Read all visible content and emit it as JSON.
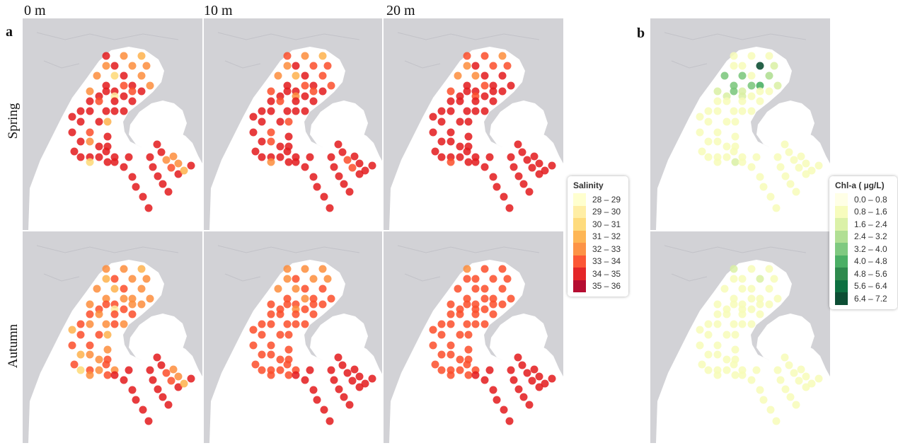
{
  "header": {
    "depths": [
      "0 m",
      "10 m",
      "20 m"
    ],
    "panel_a": "a",
    "panel_b": "b",
    "seasons": [
      "Spring",
      "Autumn"
    ]
  },
  "colors": {
    "land": "#d2d2d6",
    "sea": "#ffffff",
    "coastline": "#c2c2c8",
    "salinity": [
      "#ffffcc",
      "#ffeda0",
      "#fed976",
      "#feb24c",
      "#fd8d3c",
      "#fc4e2a",
      "#e31a1c",
      "#b10026"
    ],
    "chla": [
      "#ffffe5",
      "#f7fcb9",
      "#d9f0a3",
      "#addd8e",
      "#78c679",
      "#41ab5d",
      "#238443",
      "#006837",
      "#004529"
    ]
  },
  "legends": {
    "salinity": {
      "title": "Salinity",
      "items": [
        "28 – 29",
        "29 – 30",
        "30 – 31",
        "31 – 32",
        "32 – 33",
        "33 – 34",
        "34 – 35",
        "35 – 36"
      ]
    },
    "chla": {
      "title": "Chl-a ( µg/L)",
      "items": [
        "0.0 – 0.8",
        "0.8 – 1.6",
        "1.6 – 2.4",
        "2.4 – 3.2",
        "3.2 – 4.0",
        "4.0 – 4.8",
        "4.8 – 5.6",
        "5.6 – 6.4",
        "6.4 – 7.2"
      ]
    }
  },
  "chart_data": {
    "type": "map-points",
    "description_units": "station class index into legend",
    "maps": [
      {
        "panel": "a",
        "season": "Spring",
        "depth": "0 m",
        "variable": "Salinity",
        "classes": [
          6,
          4,
          3,
          4,
          6,
          4,
          4,
          4,
          2,
          6,
          4,
          6,
          5,
          6,
          4,
          4,
          6,
          6,
          5,
          6,
          6,
          1,
          6,
          6,
          5,
          6,
          6,
          6,
          6,
          6,
          6,
          6,
          6,
          6,
          6,
          3,
          5,
          6,
          6,
          4,
          6,
          6,
          6,
          6,
          6,
          6,
          6,
          6,
          6,
          2,
          6,
          6,
          6,
          6,
          6,
          6,
          6,
          6,
          6,
          6,
          6,
          4,
          5,
          6,
          6,
          6,
          6,
          6,
          4,
          4,
          3,
          6
        ]
      },
      {
        "panel": "a",
        "season": "Spring",
        "depth": "10 m",
        "variable": "Salinity",
        "classes": [
          5,
          4,
          3,
          4,
          6,
          5,
          5,
          4,
          3,
          6,
          5,
          6,
          5,
          6,
          5,
          5,
          6,
          6,
          5,
          6,
          6,
          4,
          6,
          6,
          5,
          6,
          6,
          6,
          6,
          6,
          6,
          6,
          6,
          6,
          6,
          5,
          5,
          6,
          6,
          5,
          6,
          6,
          6,
          6,
          6,
          6,
          6,
          6,
          6,
          4,
          6,
          6,
          6,
          6,
          6,
          6,
          6,
          6,
          6,
          6,
          6,
          5,
          5,
          6,
          6,
          6,
          6,
          6,
          6,
          6,
          6,
          6
        ]
      },
      {
        "panel": "a",
        "season": "Spring",
        "depth": "20 m",
        "variable": "Salinity",
        "classes": [
          5,
          5,
          4,
          4,
          6,
          5,
          5,
          4,
          4,
          6,
          6,
          6,
          5,
          6,
          6,
          5,
          6,
          6,
          6,
          6,
          6,
          5,
          6,
          6,
          6,
          6,
          6,
          6,
          6,
          6,
          6,
          6,
          6,
          6,
          6,
          6,
          6,
          6,
          6,
          6,
          6,
          6,
          6,
          6,
          6,
          6,
          6,
          6,
          6,
          5,
          6,
          6,
          6,
          6,
          6,
          6,
          6,
          6,
          6,
          6,
          6,
          6,
          6,
          6,
          6,
          6,
          6,
          6,
          6,
          6,
          6,
          6
        ]
      },
      {
        "panel": "a",
        "season": "Autumn",
        "depth": "0 m",
        "variable": "Salinity",
        "classes": [
          4,
          4,
          3,
          3,
          5,
          4,
          4,
          4,
          3,
          5,
          4,
          4,
          4,
          4,
          4,
          4,
          5,
          5,
          4,
          4,
          5,
          1,
          5,
          5,
          4,
          5,
          5,
          5,
          4,
          4,
          5,
          4,
          3,
          5,
          5,
          3,
          5,
          5,
          4,
          4,
          3,
          4,
          5,
          5,
          2,
          5,
          4,
          4,
          5,
          4,
          5,
          6,
          6,
          6,
          6,
          6,
          6,
          6,
          6,
          6,
          6,
          5,
          5,
          6,
          6,
          6,
          6,
          6,
          4,
          4,
          3,
          6
        ]
      },
      {
        "panel": "a",
        "season": "Autumn",
        "depth": "10 m",
        "variable": "Salinity",
        "classes": [
          4,
          4,
          4,
          4,
          5,
          4,
          4,
          4,
          4,
          5,
          5,
          5,
          4,
          5,
          5,
          5,
          5,
          5,
          5,
          5,
          5,
          4,
          5,
          5,
          5,
          5,
          5,
          5,
          5,
          5,
          5,
          5,
          5,
          5,
          5,
          5,
          5,
          5,
          5,
          5,
          5,
          5,
          5,
          5,
          5,
          5,
          5,
          5,
          5,
          5,
          5,
          6,
          6,
          6,
          6,
          6,
          6,
          6,
          6,
          6,
          6,
          6,
          6,
          6,
          6,
          6,
          6,
          6,
          6,
          6,
          6,
          6
        ]
      },
      {
        "panel": "a",
        "season": "Autumn",
        "depth": "20 m",
        "variable": "Salinity",
        "classes": [
          4,
          5,
          5,
          5,
          5,
          5,
          5,
          5,
          5,
          5,
          5,
          5,
          5,
          5,
          5,
          5,
          5,
          5,
          5,
          5,
          5,
          5,
          5,
          5,
          5,
          5,
          5,
          5,
          5,
          5,
          5,
          5,
          5,
          5,
          5,
          5,
          5,
          5,
          5,
          5,
          5,
          5,
          5,
          5,
          5,
          5,
          5,
          5,
          5,
          5,
          5,
          6,
          6,
          6,
          6,
          6,
          6,
          6,
          6,
          6,
          6,
          6,
          6,
          6,
          6,
          6,
          6,
          6,
          6,
          6,
          6,
          6
        ]
      },
      {
        "panel": "b",
        "season": "Spring",
        "variable": "Chl-a",
        "classes": [
          1,
          1,
          1,
          1,
          1,
          8,
          2,
          4,
          4,
          1,
          3,
          4,
          4,
          5,
          2,
          2,
          4,
          2,
          1,
          1,
          2,
          2,
          1,
          1,
          1,
          1,
          1,
          1,
          1,
          1,
          1,
          1,
          1,
          1,
          1,
          1,
          1,
          1,
          1,
          1,
          1,
          1,
          1,
          1,
          1,
          1,
          1,
          1,
          1,
          1,
          2,
          1,
          1,
          1,
          1,
          1,
          1,
          1,
          1,
          1,
          1,
          1,
          1,
          1,
          1,
          1,
          1,
          1,
          1,
          1,
          1,
          1
        ]
      },
      {
        "panel": "b",
        "season": "Autumn",
        "variable": "Chl-a",
        "classes": [
          2,
          1,
          1,
          1,
          1,
          2,
          1,
          1,
          1,
          1,
          1,
          1,
          1,
          1,
          1,
          1,
          1,
          1,
          1,
          1,
          1,
          1,
          1,
          1,
          1,
          1,
          1,
          1,
          1,
          1,
          1,
          1,
          1,
          1,
          1,
          1,
          1,
          1,
          1,
          1,
          1,
          1,
          1,
          1,
          1,
          1,
          1,
          1,
          1,
          1,
          1,
          1,
          1,
          1,
          1,
          1,
          1,
          1,
          1,
          1,
          1,
          1,
          1,
          1,
          1,
          1,
          1,
          1,
          1,
          1,
          1,
          1
        ]
      }
    ]
  }
}
